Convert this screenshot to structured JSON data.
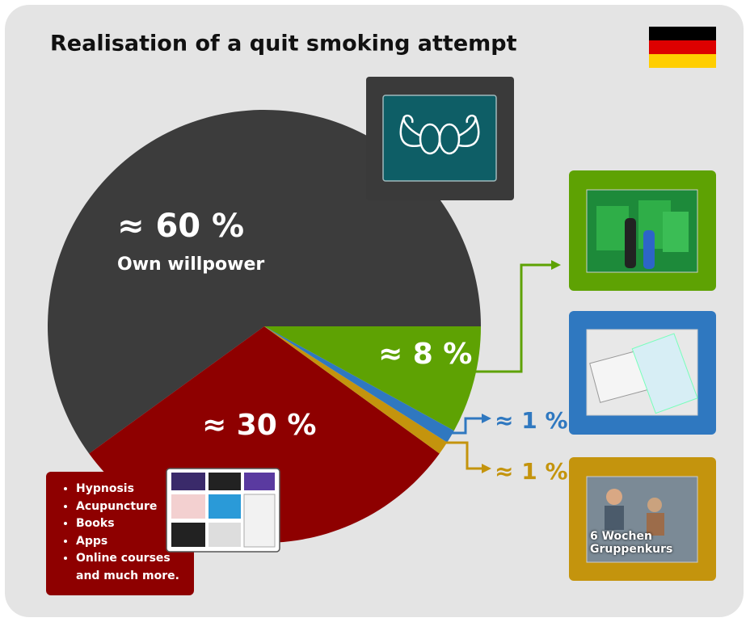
{
  "chart_data": {
    "type": "pie",
    "title": "Realisation of a quit smoking attempt",
    "categories": [
      "Own willpower",
      null,
      null,
      null,
      null
    ],
    "values": [
      60,
      30,
      1,
      1,
      8
    ],
    "value_labels": [
      "≈ 60 %",
      "≈ 30 %",
      "≈ 1 %",
      "≈ 1 %",
      "≈ 8 %"
    ],
    "colors": [
      "#3c3c3c",
      "#8e0000",
      "#c4940d",
      "#2f78c0",
      "#5ea203"
    ],
    "list_items": [
      "Hypnosis",
      "Acupuncture",
      "Books",
      "Apps",
      "Online courses and much more."
    ],
    "box_caption": "6 Wochen Gruppenkurs"
  }
}
